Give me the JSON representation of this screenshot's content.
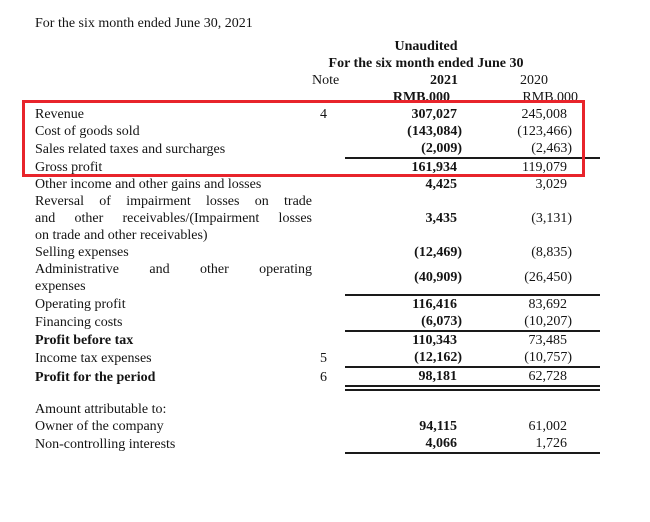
{
  "page": {
    "title": "For the six month ended June 30, 2021"
  },
  "table": {
    "header": {
      "unaudited": "Unaudited",
      "period": "For the six month ended June 30",
      "note": "Note",
      "year_2021": "2021",
      "year_2020": "2020",
      "unit_2021": "RMB,000",
      "unit_2020": "RMB,000"
    },
    "rows": [
      {
        "label": "Revenue",
        "note": "4",
        "v2021": "307,027",
        "v2020": "245,008"
      },
      {
        "label": "Cost of goods sold",
        "v2021": "(143,084)",
        "v2020": "(123,466)"
      },
      {
        "label": "Sales related taxes and surcharges",
        "v2021": "(2,009)",
        "v2020": "(2,463)",
        "line_below": "single"
      },
      {
        "label": "Gross profit",
        "v2021": "161,934",
        "v2020": "119,079"
      },
      {
        "label": "Other income and other gains and losses",
        "v2021": "4,425",
        "v2020": "3,029"
      },
      {
        "label": [
          "Reversal of impairment losses on trade",
          "and other receivables/(Impairment losses",
          "on trade and other receivables)"
        ],
        "v2021": "3,435",
        "v2020": "(3,131)"
      },
      {
        "label": "Selling expenses",
        "v2021": "(12,469)",
        "v2020": "(8,835)"
      },
      {
        "label": [
          "Administrative and other operating",
          "expenses"
        ],
        "v2021": "(40,909)",
        "v2020": "(26,450)",
        "line_below": "single"
      },
      {
        "label": "Operating profit",
        "v2021": "116,416",
        "v2020": "83,692"
      },
      {
        "label": "Financing costs",
        "v2021": "(6,073)",
        "v2020": "(10,207)",
        "line_below": "single"
      },
      {
        "label": "Profit before tax",
        "bold": true,
        "v2021": "110,343",
        "v2020": "73,485"
      },
      {
        "label": "Income tax expenses",
        "note": "5",
        "v2021": "(12,162)",
        "v2020": "(10,757)",
        "line_below": "single"
      },
      {
        "label": "Profit for the period",
        "bold": true,
        "note": "6",
        "v2021": "98,181",
        "v2020": "62,728",
        "line_below": "double"
      },
      {
        "spacer": true
      },
      {
        "label": "Amount attributable to:"
      },
      {
        "label": "Owner of the company",
        "v2021": "94,115",
        "v2020": "61,002"
      },
      {
        "label": "Non-controlling interests",
        "v2021": "4,066",
        "v2020": "1,726",
        "line_below": "single"
      }
    ]
  },
  "highlight": {
    "border_color": "#e8242b"
  }
}
